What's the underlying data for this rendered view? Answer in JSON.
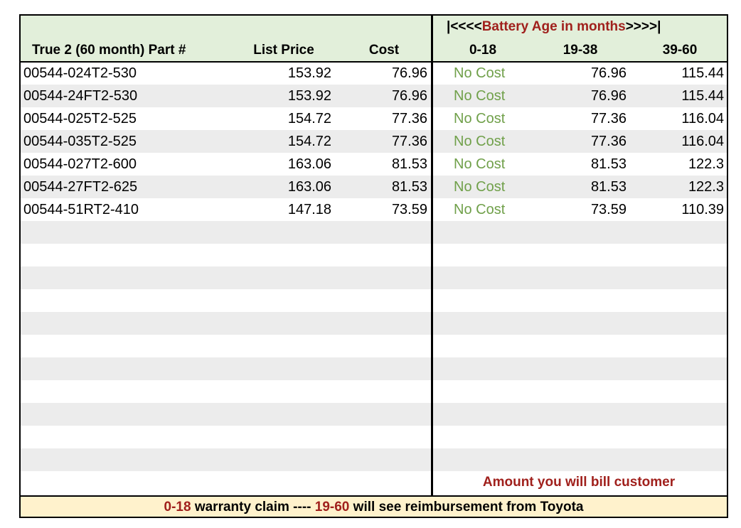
{
  "header": {
    "group_title": {
      "prefix": "|<<<<",
      "highlight": "Battery Age in months",
      "suffix": ">>>>|"
    },
    "columns": [
      "True 2 (60 month) Part #",
      "List Price",
      "Cost",
      "0-18",
      "19-38",
      "39-60"
    ]
  },
  "table": {
    "rows": [
      [
        "00544-024T2-530",
        "153.92",
        "76.96",
        "No Cost",
        "76.96",
        "115.44"
      ],
      [
        "00544-24FT2-530",
        "153.92",
        "76.96",
        "No Cost",
        "76.96",
        "115.44"
      ],
      [
        "00544-025T2-525",
        "154.72",
        "77.36",
        "No Cost",
        "77.36",
        "116.04"
      ],
      [
        "00544-035T2-525",
        "154.72",
        "77.36",
        "No Cost",
        "77.36",
        "116.04"
      ],
      [
        "00544-027T2-600",
        "163.06",
        "81.53",
        "No Cost",
        "81.53",
        "122.3"
      ],
      [
        "00544-27FT2-625",
        "163.06",
        "81.53",
        "No Cost",
        "81.53",
        "122.3"
      ],
      [
        "00544-51RT2-410",
        "147.18",
        "73.59",
        "No Cost",
        "73.59",
        "110.39"
      ]
    ]
  },
  "note": "Amount you will bill customer",
  "footer": {
    "segments": [
      "0-18",
      " warranty claim ---- ",
      "19-60",
      " will see reimbursement from Toyota"
    ]
  }
}
